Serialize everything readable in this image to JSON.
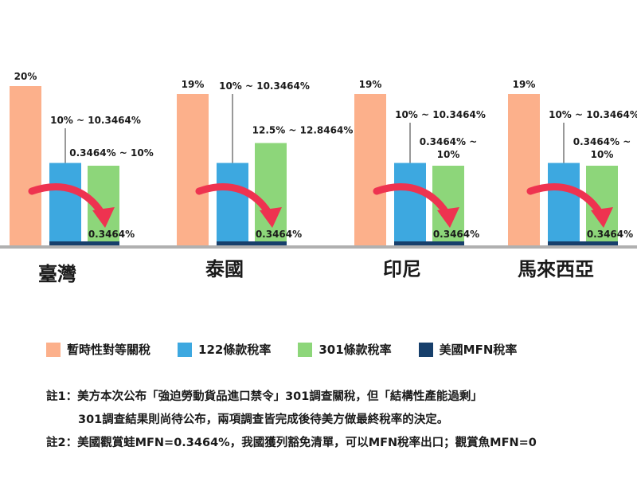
{
  "chart_data": {
    "type": "bar",
    "categories": [
      "臺灣",
      "泰國",
      "印尼",
      "馬來西亞"
    ],
    "series": [
      {
        "name": "暫時性對等關稅",
        "color": "#fcb08b",
        "values": [
          20,
          19,
          19,
          19
        ],
        "labels": [
          "20%",
          "19%",
          "19%",
          "19%"
        ]
      },
      {
        "name": "122條款稅率",
        "color": "#3da8e0",
        "values": [
          10.3464,
          10.3464,
          10.3464,
          10.3464
        ],
        "labels": [
          "10% ~ 10.3464%",
          "10% ~ 10.3464%",
          "10% ~ 10.3464%",
          "10% ~ 10.3464%"
        ]
      },
      {
        "name": "301條款稅率",
        "color": "#8dd67a",
        "values": [
          10,
          12.8464,
          10,
          10
        ],
        "labels": [
          "0.3464% ~ 10%",
          "12.5% ~ 12.8464%",
          "0.3464% ~\n10%",
          "0.3464% ~\n10%"
        ]
      },
      {
        "name": "美國MFN稅率",
        "color": "#173f6b",
        "values": [
          0.3464,
          0.3464,
          0.3464,
          0.3464
        ],
        "labels": [
          "0.3464%",
          "0.3464%",
          "0.3464%",
          "0.3464%"
        ]
      }
    ],
    "ylim": [
      0,
      20
    ],
    "arrow_color": "#ee3350",
    "baseline_color": "#b0b0b0"
  },
  "legend": [
    {
      "label": "暫時性對等關稅",
      "color": "#fcb08b"
    },
    {
      "label": "122條款稅率",
      "color": "#3da8e0"
    },
    {
      "label": "301條款稅率",
      "color": "#8dd67a"
    },
    {
      "label": "美國MFN稅率",
      "color": "#173f6b"
    }
  ],
  "notes": {
    "note1_line1": "註1：美方本次公布「強迫勞動貨品進口禁令」301調查關稅，但「結構性產能過剩」",
    "note1_line2": "301調查結果則尚待公布，兩項調查皆完成後待美方做最終稅率的決定。",
    "note2": "註2：美國觀賞蛙MFN=0.3464%，我國獲列豁免清單，可以MFN稅率出口；觀賞魚MFN=0"
  }
}
